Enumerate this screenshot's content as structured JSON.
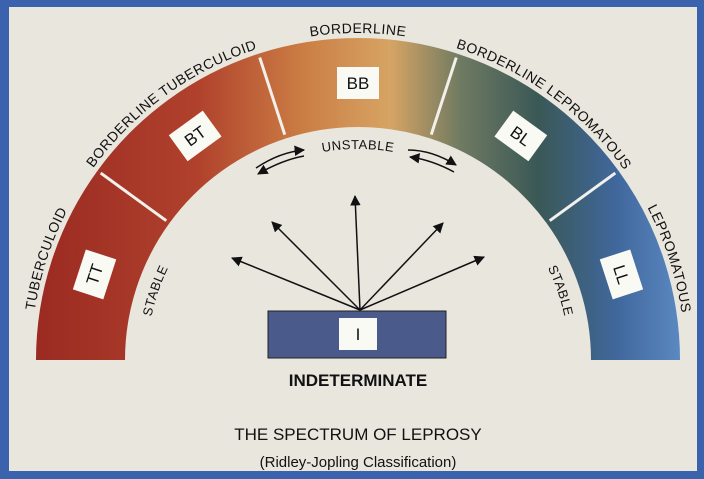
{
  "segments": [
    {
      "code": "TT",
      "name": "TUBERCULOID"
    },
    {
      "code": "BT",
      "name": "BORDERLINE TUBERCULOID"
    },
    {
      "code": "BB",
      "name": "BORDERLINE"
    },
    {
      "code": "BL",
      "name": "BORDERLINE LEPROMATOUS"
    },
    {
      "code": "LL",
      "name": "LEPROMATOUS"
    }
  ],
  "stability": {
    "left": "STABLE",
    "center": "UNSTABLE",
    "right": "STABLE"
  },
  "indeterminate": {
    "code": "I",
    "name": "INDETERMINATE"
  },
  "title": "THE SPECTRUM OF LEPROSY",
  "subtitle": "(Ridley-Jopling Classification)"
}
